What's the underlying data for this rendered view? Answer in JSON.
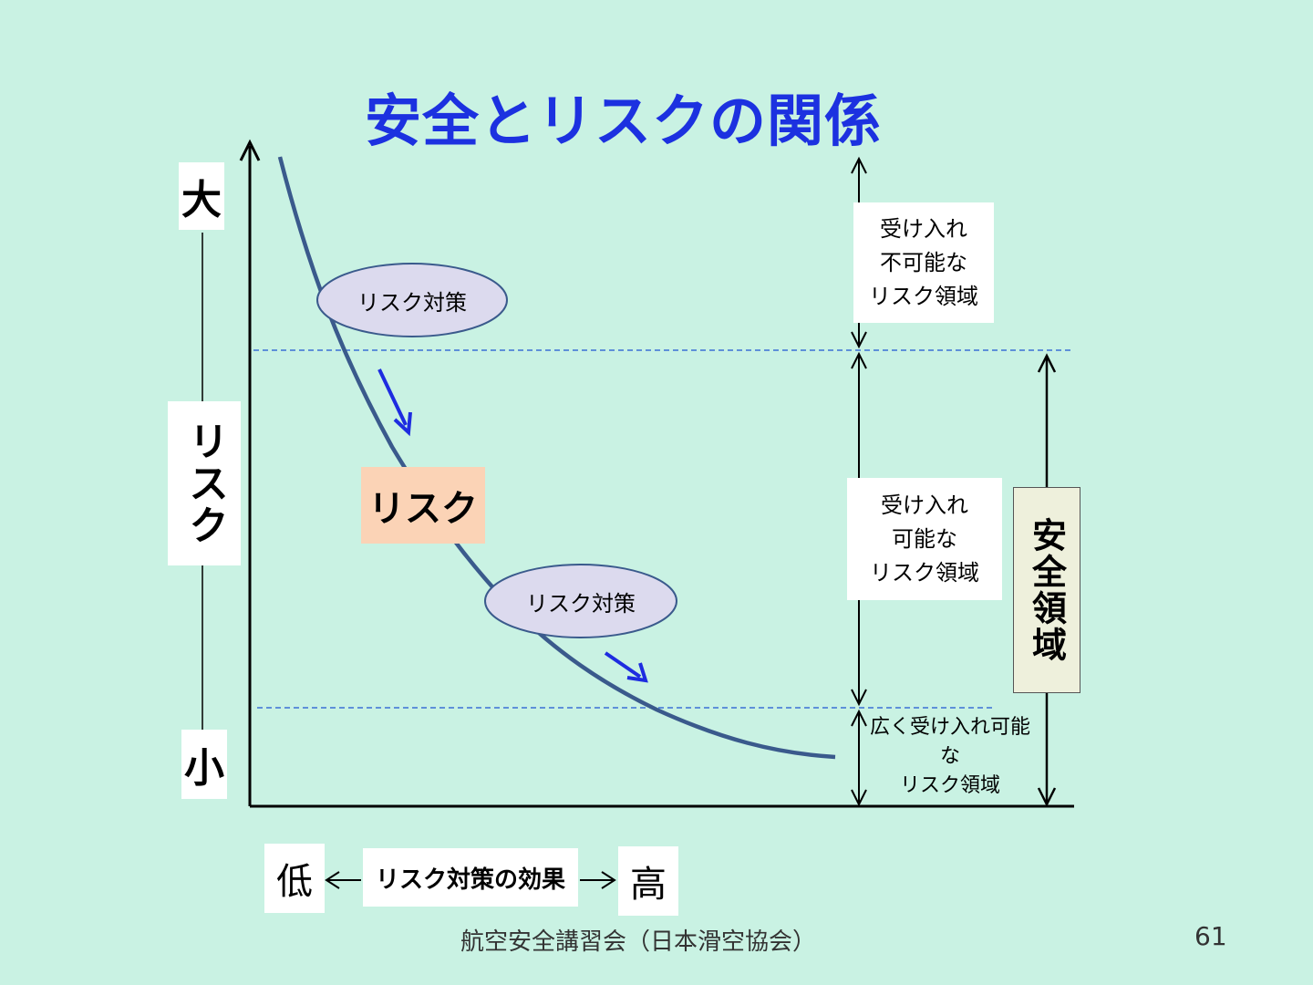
{
  "title": "安全とリスクの関係",
  "y_axis": {
    "high_label": "大",
    "label": "リスク",
    "low_label": "小"
  },
  "x_axis": {
    "low_label": "低",
    "label": "リスク対策の効果",
    "high_label": "高"
  },
  "curve_label": "リスク",
  "measure_labels": [
    "リスク対策",
    "リスク対策"
  ],
  "regions": {
    "unacceptable": "受け入れ\n不可能な\nリスク領域",
    "acceptable": "受け入れ\n可能な\nリスク領域",
    "broadly_acceptable": "広く受け入れ可能な\nリスク領域"
  },
  "safety_zone": "安全領域",
  "footer": "航空安全講習会（日本滑空協会）",
  "page_number": "61",
  "colors": {
    "background": "#c9f2e3",
    "title": "#1c31e0",
    "curve": "#3a5a8c",
    "arrow": "#1e2ce0",
    "dashed_line": "#3a6fd6",
    "ellipse_fill": "#dcdaee",
    "risk_box": "#fbd3b6"
  }
}
